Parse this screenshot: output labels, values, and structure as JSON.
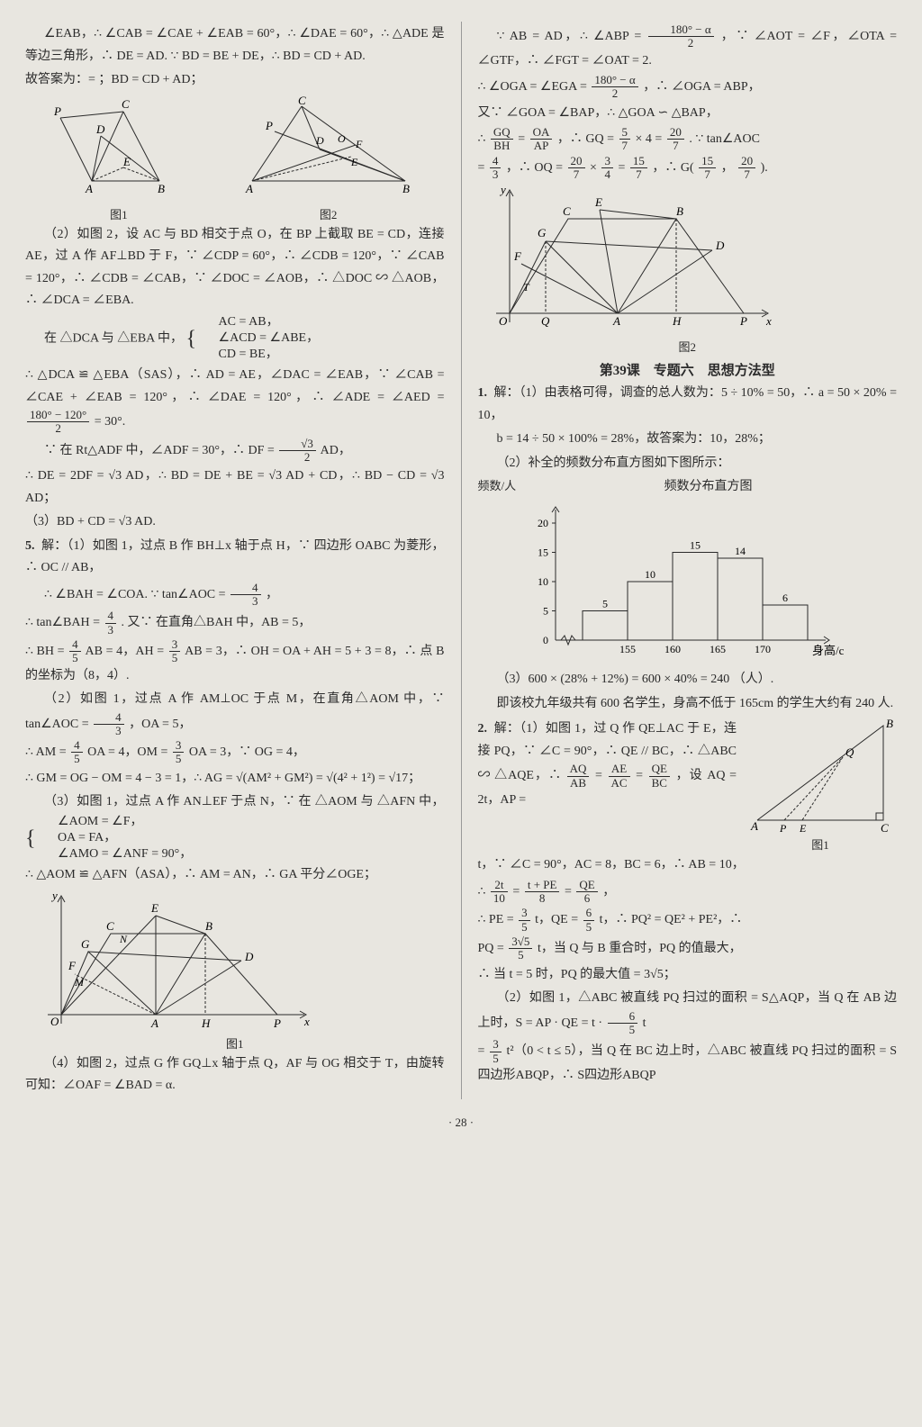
{
  "page_number": "· 28 ·",
  "left": {
    "p1": "∠EAB，∴ ∠CAB = ∠CAE + ∠EAB = 60°，∴ ∠DAE = 60°，∴ △ADE 是等边三角形，∴ DE = AD.  ∵ BD = BE + DE，∴ BD = CD + AD.",
    "p1b": "故答案为：= ；BD = CD + AD；",
    "fig1_caption": "图1",
    "fig2_caption": "图2",
    "p2": "（2）如图 2，设 AC 与 BD 相交于点 O，在 BP 上截取 BE = CD，连接 AE，过 A 作 AF⊥BD 于 F，∵ ∠CDP = 60°，∴ ∠CDB = 120°，∵ ∠CAB = 120°，∴ ∠CDB = ∠CAB，∵ ∠DOC = ∠AOB，∴ △DOC ∽ △AOB，∴ ∠DCA = ∠EBA.",
    "p3a": "在 △DCA 与 △EBA 中，",
    "p3b": "AC = AB，",
    "p3c": "∠ACD = ∠ABE，",
    "p3d": "CD = BE，",
    "p4": "∴ △DCA ≌ △EBA（SAS），∴ AD = AE，∠DAC = ∠EAB，∵ ∠CAB = ∠CAE + ∠EAB = 120°，∴ ∠DAE = 120°，∴ ∠ADE = ∠AED = ",
    "p4_frac_num": "180° − 120°",
    "p4_frac_den": "2",
    "p4_tail": " = 30°.",
    "p5a": "∵ 在 Rt△ADF 中，∠ADF = 30°，∴ DF = ",
    "p5a_num": "√3",
    "p5a_den": "2",
    "p5a_tail": "AD，",
    "p5b": "∴ DE = 2DF = √3 AD，∴ BD = DE + BE = √3 AD + CD，∴ BD − CD = √3 AD；",
    "p5c": "（3）BD + CD = √3 AD.",
    "q5": "5.",
    "p6": "解：（1）如图 1，过点 B 作 BH⊥x 轴于点 H，∵ 四边形 OABC 为菱形，∴ OC // AB，",
    "p7a": "∴ ∠BAH = ∠COA.  ∵ tan∠AOC = ",
    "p7a_num": "4",
    "p7a_den": "3",
    "p7a_tail": "，",
    "p7b": "∴ tan∠BAH = ",
    "p7b_num": "4",
    "p7b_den": "3",
    "p7b_tail": ".  又∵ 在直角△BAH 中，AB = 5，",
    "p7c": "∴ BH = ",
    "p7c_num1": "4",
    "p7c_den1": "5",
    "p7c_mid": "AB = 4，AH = ",
    "p7c_num2": "3",
    "p7c_den2": "5",
    "p7c_tail": "AB = 3，∴ OH = OA + AH = 5 + 3 = 8，∴ 点 B 的坐标为（8，4）.",
    "p8": "（2）如图 1，过点 A 作 AM⊥OC 于点 M，在直角△AOM 中，∵ tan∠AOC = ",
    "p8_num": "4",
    "p8_den": "3",
    "p8_tail": "，OA = 5，",
    "p9a": "∴ AM = ",
    "p9a_num1": "4",
    "p9a_den1": "5",
    "p9a_mid1": "OA = 4，OM = ",
    "p9a_num2": "3",
    "p9a_den2": "5",
    "p9a_tail": "OA = 3，∵ OG = 4，",
    "p9b": "∴ GM = OG − OM = 4 − 3 = 1，∴ AG = √(AM² + GM²) = √(4² + 1²) = √17；",
    "p10": "（3）如图 1，过点 A 作 AN⊥EF 于点 N，∵ 在 △AOM 与 △AFN 中，",
    "p10b": "∠AOM = ∠F，",
    "p10c": "OA = FA，",
    "p10d": "∠AMO = ∠ANF = 90°，",
    "p11": "∴ △AOM ≌ △AFN（ASA），∴ AM = AN，∴ GA 平分∠OGE；",
    "fig3_caption": "图1",
    "p12": "（4）如图 2，过点 G 作 GQ⊥x 轴于点 Q，AF 与 OG 相交于 T，由旋转可知：∠OAF = ∠BAD = α."
  },
  "right": {
    "p1a": "∵ AB = AD，∴ ∠ABP = ",
    "p1a_num": "180° − α",
    "p1a_den": "2",
    "p1a_tail": "，∵ ∠AOT = ∠F，∠OTA = ∠GTF，∴ ∠FGT = ∠OAT = 2.",
    "p1b": "∴ ∠OGA = ∠EGA = ",
    "p1b_num": "180° − α",
    "p1b_den": "2",
    "p1b_tail": "，∴ ∠OGA = ABP，",
    "p2": "又∵ ∠GOA = ∠BAP，∴ △GOA ∽ △BAP，",
    "p3a": "∴ ",
    "p3a_n1": "GQ",
    "p3a_d1": "BH",
    "p3a_mid1": " = ",
    "p3a_n2": "OA",
    "p3a_d2": "AP",
    "p3a_mid2": "，∴ GQ = ",
    "p3a_n3": "5",
    "p3a_d3": "7",
    "p3a_mid3": " × 4 = ",
    "p3a_n4": "20",
    "p3a_d4": "7",
    "p3a_tail": ".  ∵ tan∠AOC",
    "p3b": " = ",
    "p3b_n1": "4",
    "p3b_d1": "3",
    "p3b_mid1": "，∴ OQ = ",
    "p3b_n2": "20",
    "p3b_d2": "7",
    "p3b_mid2": " × ",
    "p3b_n3": "3",
    "p3b_d3": "4",
    "p3b_mid3": " = ",
    "p3b_n4": "15",
    "p3b_d4": "7",
    "p3b_mid4": "，∴ G( ",
    "p3b_n5": "15",
    "p3b_d5": "7",
    "p3b_mid5": "，",
    "p3b_n6": "20",
    "p3b_d6": "7",
    "p3b_tail": " ).",
    "fig_r_caption": "图2",
    "section": "第39课　专题六　思想方法型",
    "q1": "1.",
    "p4": "解：（1）由表格可得，调查的总人数为：5 ÷ 10% = 50，∴ a = 50 × 20% = 10，",
    "p5": "b = 14 ÷ 50 × 100% = 28%，故答案为：10，28%；",
    "p6": "（2）补全的频数分布直方图如下图所示：",
    "hist_title": "频数分布直方图",
    "hist_ylabel": "频数/人",
    "hist_xlabel": "身高/cm",
    "hist": {
      "type": "bar",
      "categories": [
        "155",
        "160",
        "165",
        "170"
      ],
      "edges": [
        150,
        155,
        160,
        165,
        170,
        175
      ],
      "values": [
        5,
        10,
        15,
        14,
        6
      ],
      "bar_labels": [
        "5",
        "10",
        "15",
        "14",
        "6"
      ],
      "ylim": [
        0,
        20
      ],
      "ytick_step": 5,
      "bar_color": "#e8e6e0",
      "bar_border": "#2a2a2a",
      "grid_color": "#2a2a2a",
      "background_color": "#e8e6e0"
    },
    "p7": "（3）600 × (28% + 12%) = 600 × 40% = 240 （人）.",
    "p8": "即该校九年级共有 600 名学生，身高不低于 165cm 的学生大约有 240 人.",
    "q2": "2.",
    "p9": "解：（1）如图 1，过 Q 作 QE⊥AC 于 E，连接 PQ，∵ ∠C = 90°，∴ QE // BC，∴ △ABC ∽ △AQE，∴ ",
    "p9_n1": "AQ",
    "p9_d1": "AB",
    "p9_m1": " = ",
    "p9_n2": "AE",
    "p9_d2": "AC",
    "p9_m2": " = ",
    "p9_n3": "QE",
    "p9_d3": "BC",
    "p9_tail": "，设 AQ = 2t，AP = ",
    "fig_r2_caption": "图1",
    "p10": "t，∵ ∠C = 90°，AC = 8，BC = 6，∴ AB = 10，",
    "p10b": "∴ ",
    "p10_n1": "2t",
    "p10_d1": "10",
    "p10_m1": " = ",
    "p10_n2": "t + PE",
    "p10_d2": "8",
    "p10_m2": " = ",
    "p10_n3": "QE",
    "p10_d3": "6",
    "p10_tail": "，",
    "p11a": "∴ PE = ",
    "p11_n1": "3",
    "p11_d1": "5",
    "p11_m1": "t，QE = ",
    "p11_n2": "6",
    "p11_d2": "5",
    "p11_tail": "t，∴ PQ² = QE² + PE²，∴",
    "p12a": "PQ = ",
    "p12_n1": "3√5",
    "p12_d1": "5",
    "p12_tail": "t，当 Q 与 B 重合时，PQ 的值最大，",
    "p13": "∴ 当 t = 5 时，PQ 的最大值 = 3√5；",
    "p14": "（2）如图 1，△ABC 被直线 PQ 扫过的面积 = S△AQP，当 Q 在 AB 边上时，S = AP · QE = t · ",
    "p14_n1": "6",
    "p14_d1": "5",
    "p14_tail": " t",
    "p15a": " = ",
    "p15_n1": "3",
    "p15_d1": "5",
    "p15_tail": "t²（0 < t ≤ 5），当 Q 在 BC 边上时，△ABC 被直线 PQ 扫过的面积 = S四边形ABQP，∴ S四边形ABQP"
  }
}
